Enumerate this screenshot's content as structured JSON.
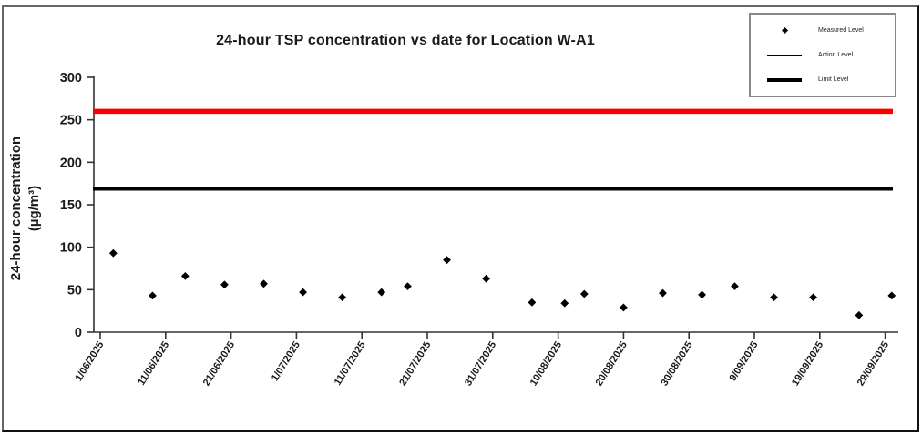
{
  "chart_data": {
    "type": "scatter",
    "title": "24-hour TSP concentration vs date for Location W-A1",
    "xlabel": "",
    "ylabel": "24-hour concentration (µg/m³)",
    "ylabel_line1": "24-hour concentration",
    "ylabel_line2": "(µg/m³)",
    "ylim": [
      0,
      300
    ],
    "yticks": [
      0,
      50,
      100,
      150,
      200,
      250,
      300
    ],
    "xtick_labels": [
      "1/06/2025",
      "11/06/2025",
      "21/06/2025",
      "1/07/2025",
      "11/07/2025",
      "21/07/2025",
      "31/07/2025",
      "10/08/2025",
      "20/08/2025",
      "30/08/2025",
      "9/09/2025",
      "19/09/2025",
      "29/09/2025"
    ],
    "xtick_interval_days": 10,
    "x_range_days": [
      0,
      120
    ],
    "grid": false,
    "legend": {
      "position": "top-right",
      "entries": [
        {
          "label": "Measured Level",
          "marker": "black-diamond",
          "color": "#000000"
        },
        {
          "label": "Action Level",
          "marker": "black-line",
          "color": "#000000"
        },
        {
          "label": "Limit Level",
          "marker": "red-line",
          "color": "#fa0000"
        }
      ]
    },
    "series": [
      {
        "name": "Measured Level",
        "type": "scatter",
        "marker": "diamond",
        "color": "#000000",
        "points": [
          {
            "date": "3/06/2025",
            "day": 2,
            "value": 93
          },
          {
            "date": "9/06/2025",
            "day": 8,
            "value": 43
          },
          {
            "date": "14/06/2025",
            "day": 13,
            "value": 66
          },
          {
            "date": "20/06/2025",
            "day": 19,
            "value": 56
          },
          {
            "date": "26/06/2025",
            "day": 25,
            "value": 57
          },
          {
            "date": "2/07/2025",
            "day": 31,
            "value": 47
          },
          {
            "date": "8/07/2025",
            "day": 37,
            "value": 41
          },
          {
            "date": "14/07/2025",
            "day": 43,
            "value": 47
          },
          {
            "date": "18/07/2025",
            "day": 47,
            "value": 54
          },
          {
            "date": "24/07/2025",
            "day": 53,
            "value": 85
          },
          {
            "date": "30/07/2025",
            "day": 59,
            "value": 63
          },
          {
            "date": "6/08/2025",
            "day": 66,
            "value": 35
          },
          {
            "date": "11/08/2025",
            "day": 71,
            "value": 34
          },
          {
            "date": "14/08/2025",
            "day": 74,
            "value": 45
          },
          {
            "date": "20/08/2025",
            "day": 80,
            "value": 29
          },
          {
            "date": "26/08/2025",
            "day": 86,
            "value": 46
          },
          {
            "date": "1/09/2025",
            "day": 92,
            "value": 44
          },
          {
            "date": "6/09/2025",
            "day": 97,
            "value": 54
          },
          {
            "date": "12/09/2025",
            "day": 103,
            "value": 41
          },
          {
            "date": "18/09/2025",
            "day": 109,
            "value": 41
          },
          {
            "date": "25/09/2025",
            "day": 116,
            "value": 20
          },
          {
            "date": "30/09/2025",
            "day": 121,
            "value": 43
          }
        ]
      },
      {
        "name": "Action Level",
        "type": "hline",
        "color": "#000000",
        "value": 169
      },
      {
        "name": "Limit Level",
        "type": "hline",
        "color": "#fa0000",
        "value": 260
      }
    ]
  },
  "colors": {
    "measured": "#000000",
    "action_line": "#000000",
    "limit_line": "#fa0000",
    "axis": "#333333",
    "tick_text": "#1a1a1a",
    "frame": "#111111",
    "legend_border": "#8a8a8a"
  }
}
